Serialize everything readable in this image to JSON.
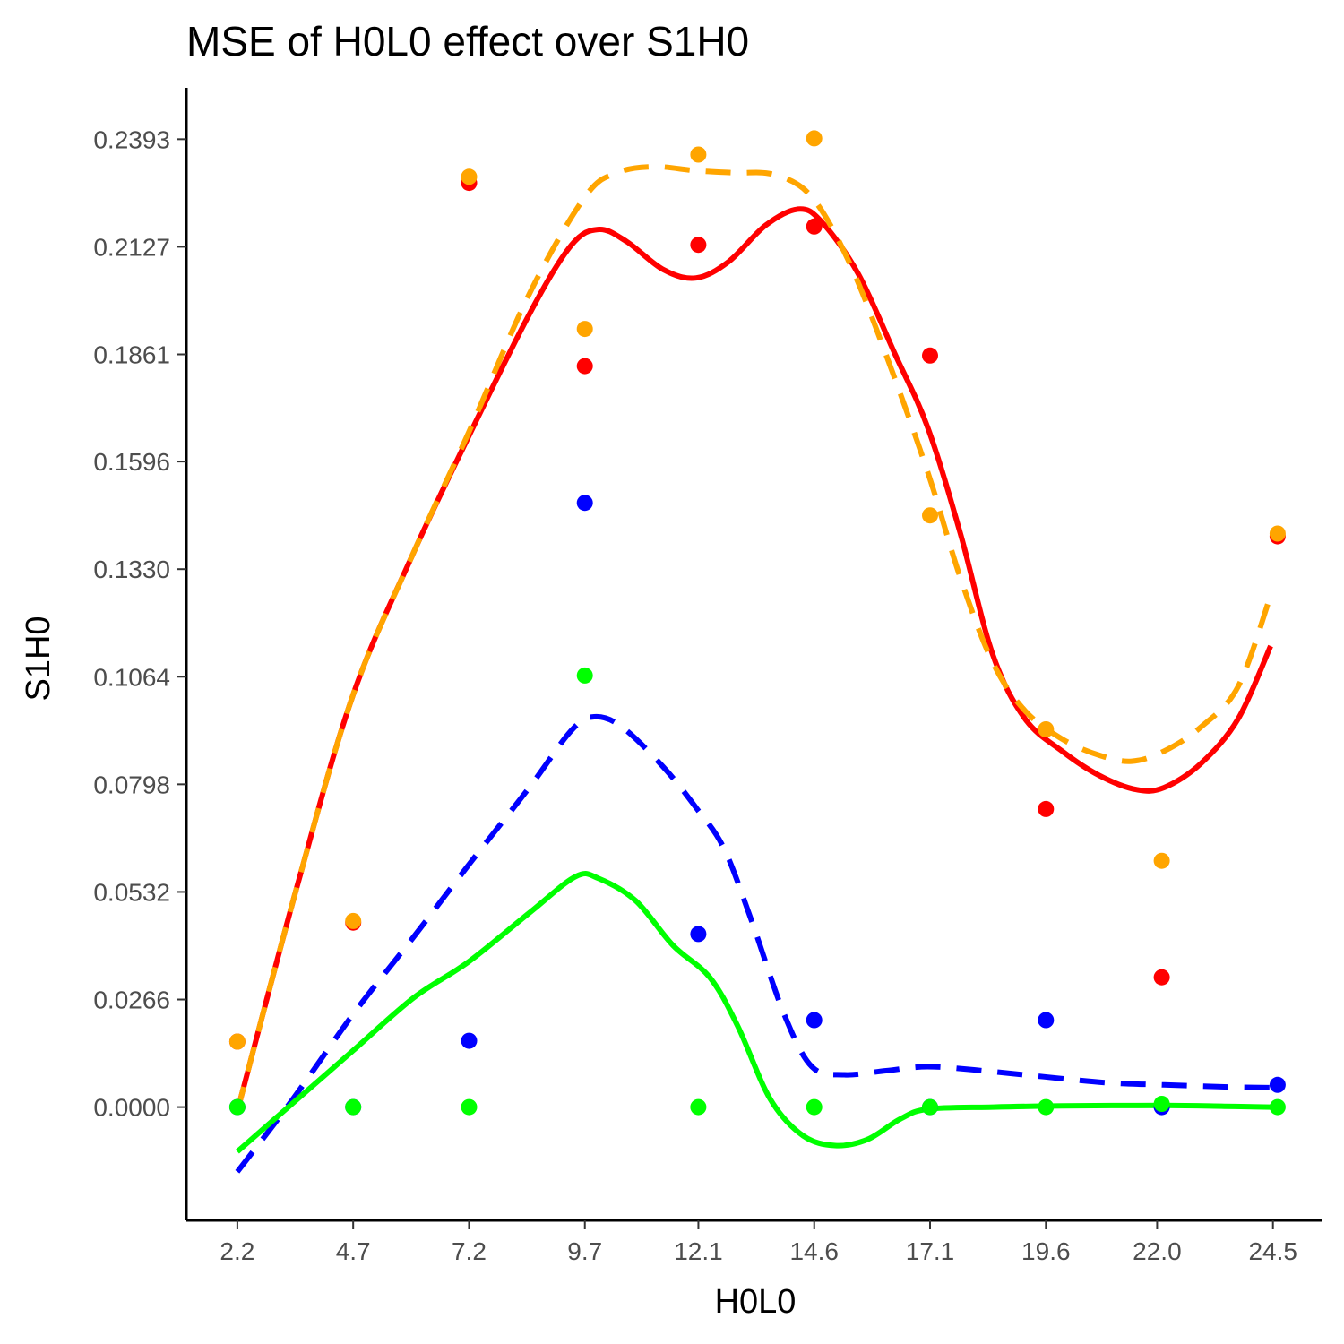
{
  "chart_data": {
    "type": "scatter",
    "title": "MSE of H0L0 effect over  S1H0",
    "xlabel": "H0L0",
    "ylabel": "S1H0",
    "x_ticks": [
      "2.2",
      "4.7",
      "7.2",
      "9.7",
      "12.1",
      "14.6",
      "17.1",
      "19.6",
      "22.0",
      "24.5"
    ],
    "y_ticks": [
      "0.0000",
      "0.0266",
      "0.0532",
      "0.0798",
      "0.1064",
      "0.1330",
      "0.1596",
      "0.1861",
      "0.2127",
      "0.2393"
    ],
    "xlim": [
      1.1,
      25.6
    ],
    "ylim": [
      -0.028,
      0.252
    ],
    "legend": "none",
    "grid": false,
    "series": [
      {
        "color": "#ff0000",
        "line_style": "solid",
        "points": [
          {
            "x": 2.2,
            "y": 0.0162
          },
          {
            "x": 4.7,
            "y": 0.0456
          },
          {
            "x": 7.2,
            "y": 0.2285
          },
          {
            "x": 9.7,
            "y": 0.1832
          },
          {
            "x": 12.15,
            "y": 0.2132
          },
          {
            "x": 14.65,
            "y": 0.2177
          },
          {
            "x": 17.15,
            "y": 0.1858
          },
          {
            "x": 19.65,
            "y": 0.0737
          },
          {
            "x": 22.15,
            "y": 0.0321
          },
          {
            "x": 24.65,
            "y": 0.1411
          }
        ],
        "curve": [
          {
            "x": 2.2,
            "y": -0.001
          },
          {
            "x": 3.5,
            "y": 0.055
          },
          {
            "x": 4.7,
            "y": 0.102
          },
          {
            "x": 6.0,
            "y": 0.137
          },
          {
            "x": 7.2,
            "y": 0.166
          },
          {
            "x": 8.5,
            "y": 0.196
          },
          {
            "x": 9.4,
            "y": 0.213
          },
          {
            "x": 10.0,
            "y": 0.217
          },
          {
            "x": 10.6,
            "y": 0.214
          },
          {
            "x": 11.4,
            "y": 0.207
          },
          {
            "x": 12.1,
            "y": 0.205
          },
          {
            "x": 12.8,
            "y": 0.209
          },
          {
            "x": 13.6,
            "y": 0.218
          },
          {
            "x": 14.3,
            "y": 0.222
          },
          {
            "x": 14.8,
            "y": 0.219
          },
          {
            "x": 15.6,
            "y": 0.206
          },
          {
            "x": 16.4,
            "y": 0.186
          },
          {
            "x": 17.1,
            "y": 0.168
          },
          {
            "x": 17.8,
            "y": 0.142
          },
          {
            "x": 18.5,
            "y": 0.112
          },
          {
            "x": 19.2,
            "y": 0.096
          },
          {
            "x": 20.0,
            "y": 0.088
          },
          {
            "x": 20.8,
            "y": 0.082
          },
          {
            "x": 21.6,
            "y": 0.0785
          },
          {
            "x": 22.2,
            "y": 0.079
          },
          {
            "x": 23.0,
            "y": 0.085
          },
          {
            "x": 23.8,
            "y": 0.096
          },
          {
            "x": 24.5,
            "y": 0.114
          }
        ]
      },
      {
        "color": "#ffa500",
        "line_style": "dashed",
        "points": [
          {
            "x": 2.2,
            "y": 0.0162
          },
          {
            "x": 4.7,
            "y": 0.046
          },
          {
            "x": 7.2,
            "y": 0.23
          },
          {
            "x": 9.7,
            "y": 0.1924
          },
          {
            "x": 12.15,
            "y": 0.2355
          },
          {
            "x": 14.65,
            "y": 0.2395
          },
          {
            "x": 17.15,
            "y": 0.1463
          },
          {
            "x": 19.65,
            "y": 0.0934
          },
          {
            "x": 22.15,
            "y": 0.0609
          },
          {
            "x": 24.65,
            "y": 0.1418
          }
        ],
        "curve": [
          {
            "x": 2.2,
            "y": -0.001
          },
          {
            "x": 3.5,
            "y": 0.055
          },
          {
            "x": 4.7,
            "y": 0.102
          },
          {
            "x": 6.0,
            "y": 0.137
          },
          {
            "x": 7.2,
            "y": 0.167
          },
          {
            "x": 8.5,
            "y": 0.201
          },
          {
            "x": 9.7,
            "y": 0.225
          },
          {
            "x": 10.4,
            "y": 0.231
          },
          {
            "x": 11.2,
            "y": 0.2325
          },
          {
            "x": 12.1,
            "y": 0.2315
          },
          {
            "x": 12.9,
            "y": 0.231
          },
          {
            "x": 13.8,
            "y": 0.2305
          },
          {
            "x": 14.6,
            "y": 0.225
          },
          {
            "x": 15.4,
            "y": 0.209
          },
          {
            "x": 16.2,
            "y": 0.186
          },
          {
            "x": 17.1,
            "y": 0.157
          },
          {
            "x": 17.8,
            "y": 0.131
          },
          {
            "x": 18.5,
            "y": 0.11
          },
          {
            "x": 19.2,
            "y": 0.098
          },
          {
            "x": 20.0,
            "y": 0.091
          },
          {
            "x": 20.8,
            "y": 0.087
          },
          {
            "x": 21.5,
            "y": 0.0855
          },
          {
            "x": 22.2,
            "y": 0.088
          },
          {
            "x": 23.0,
            "y": 0.094
          },
          {
            "x": 23.8,
            "y": 0.104
          },
          {
            "x": 24.5,
            "y": 0.1265
          }
        ]
      },
      {
        "color": "#0000ff",
        "line_style": "dashed",
        "points": [
          {
            "x": 2.2,
            "y": 0.0
          },
          {
            "x": 4.7,
            "y": 0.0
          },
          {
            "x": 7.2,
            "y": 0.0164
          },
          {
            "x": 9.7,
            "y": 0.1494
          },
          {
            "x": 12.15,
            "y": 0.0428
          },
          {
            "x": 14.65,
            "y": 0.0215
          },
          {
            "x": 17.15,
            "y": 0.0
          },
          {
            "x": 19.65,
            "y": 0.0215
          },
          {
            "x": 22.15,
            "y": 0.0
          },
          {
            "x": 24.65,
            "y": 0.0055
          }
        ],
        "curve": [
          {
            "x": 2.2,
            "y": -0.016
          },
          {
            "x": 3.4,
            "y": 0.002
          },
          {
            "x": 4.7,
            "y": 0.023
          },
          {
            "x": 6.0,
            "y": 0.042
          },
          {
            "x": 7.2,
            "y": 0.06
          },
          {
            "x": 8.5,
            "y": 0.079
          },
          {
            "x": 9.4,
            "y": 0.093
          },
          {
            "x": 9.9,
            "y": 0.0965
          },
          {
            "x": 10.5,
            "y": 0.094
          },
          {
            "x": 11.4,
            "y": 0.084
          },
          {
            "x": 12.1,
            "y": 0.074
          },
          {
            "x": 12.7,
            "y": 0.064
          },
          {
            "x": 13.3,
            "y": 0.046
          },
          {
            "x": 14.0,
            "y": 0.023
          },
          {
            "x": 14.6,
            "y": 0.01
          },
          {
            "x": 15.3,
            "y": 0.008
          },
          {
            "x": 16.2,
            "y": 0.009
          },
          {
            "x": 17.1,
            "y": 0.01
          },
          {
            "x": 18.3,
            "y": 0.009
          },
          {
            "x": 19.6,
            "y": 0.0075
          },
          {
            "x": 21.0,
            "y": 0.006
          },
          {
            "x": 22.2,
            "y": 0.0055
          },
          {
            "x": 23.5,
            "y": 0.005
          },
          {
            "x": 24.5,
            "y": 0.0048
          }
        ]
      },
      {
        "color": "#00ff00",
        "line_style": "solid",
        "points": [
          {
            "x": 2.2,
            "y": 0.0
          },
          {
            "x": 4.7,
            "y": 0.0
          },
          {
            "x": 7.2,
            "y": 0.0
          },
          {
            "x": 9.7,
            "y": 0.1067
          },
          {
            "x": 12.15,
            "y": 0.0
          },
          {
            "x": 14.65,
            "y": 0.0
          },
          {
            "x": 17.15,
            "y": 0.0
          },
          {
            "x": 19.65,
            "y": 0.0
          },
          {
            "x": 22.15,
            "y": 0.0008
          },
          {
            "x": 24.65,
            "y": 0.0
          }
        ],
        "curve": [
          {
            "x": 2.2,
            "y": -0.011
          },
          {
            "x": 3.4,
            "y": 0.001
          },
          {
            "x": 4.7,
            "y": 0.014
          },
          {
            "x": 6.0,
            "y": 0.027
          },
          {
            "x": 7.2,
            "y": 0.036
          },
          {
            "x": 8.5,
            "y": 0.048
          },
          {
            "x": 9.5,
            "y": 0.057
          },
          {
            "x": 10.0,
            "y": 0.0565
          },
          {
            "x": 10.8,
            "y": 0.051
          },
          {
            "x": 11.6,
            "y": 0.04
          },
          {
            "x": 12.4,
            "y": 0.032
          },
          {
            "x": 13.0,
            "y": 0.02
          },
          {
            "x": 13.7,
            "y": 0.002
          },
          {
            "x": 14.4,
            "y": -0.007
          },
          {
            "x": 15.1,
            "y": -0.0095
          },
          {
            "x": 15.8,
            "y": -0.008
          },
          {
            "x": 16.5,
            "y": -0.003
          },
          {
            "x": 17.1,
            "y": -0.0005
          },
          {
            "x": 18.5,
            "y": 0.0
          },
          {
            "x": 20.0,
            "y": 0.0003
          },
          {
            "x": 22.2,
            "y": 0.0004
          },
          {
            "x": 23.5,
            "y": 0.0002
          },
          {
            "x": 24.5,
            "y": 0.0
          }
        ]
      }
    ]
  }
}
